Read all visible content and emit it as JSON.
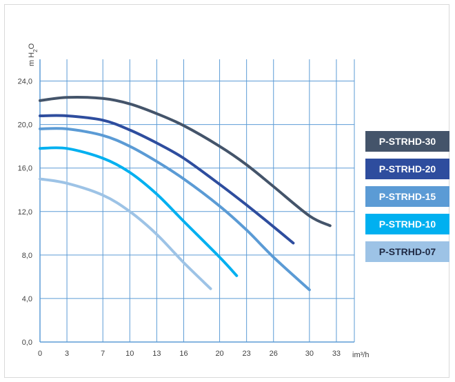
{
  "chart_data": {
    "type": "line",
    "ylabel": {
      "main": "m H",
      "sub": "2",
      "end": "O"
    },
    "xlabel": "im³/h",
    "x_ticks": [
      0,
      3,
      7,
      10,
      13,
      16,
      20,
      23,
      26,
      30,
      33
    ],
    "x_tick_labels": [
      "0",
      "3",
      "7",
      "10",
      "13",
      "16",
      "20",
      "23",
      "26",
      "30",
      "33"
    ],
    "y_ticks": [
      0,
      4,
      8,
      12,
      16,
      20,
      24
    ],
    "y_tick_labels": [
      "0,0",
      "4,0",
      "8,0",
      "12,0",
      "16,0",
      "20,0",
      "24,0"
    ],
    "xlim": [
      0,
      35
    ],
    "ylim": [
      0,
      26
    ],
    "grid": true,
    "legend_position": "right",
    "series": [
      {
        "name": "P-STRHD-30",
        "color": "#44546a",
        "text_color": "#ffffff",
        "x": [
          0,
          3,
          7,
          10,
          13,
          16,
          20,
          23,
          26,
          30,
          32.3
        ],
        "y": [
          22.2,
          22.5,
          22.4,
          21.9,
          21.0,
          19.9,
          18.0,
          16.3,
          14.3,
          11.6,
          10.7
        ]
      },
      {
        "name": "P-STRHD-20",
        "color": "#2e4d9e",
        "text_color": "#ffffff",
        "x": [
          0,
          3,
          7,
          10,
          13,
          16,
          20,
          23,
          26,
          28.2
        ],
        "y": [
          20.8,
          20.8,
          20.4,
          19.5,
          18.3,
          16.9,
          14.5,
          12.6,
          10.6,
          9.1
        ]
      },
      {
        "name": "P-STRHD-15",
        "color": "#5b9bd5",
        "text_color": "#ffffff",
        "x": [
          0,
          3,
          7,
          10,
          13,
          16,
          20,
          23,
          26,
          30
        ],
        "y": [
          19.6,
          19.6,
          19.0,
          18.0,
          16.6,
          15.0,
          12.5,
          10.3,
          7.8,
          4.8
        ]
      },
      {
        "name": "P-STRHD-10",
        "color": "#00b0f0",
        "text_color": "#ffffff",
        "x": [
          0,
          3,
          7,
          10,
          13,
          16,
          20,
          21.9
        ],
        "y": [
          17.8,
          17.8,
          16.9,
          15.6,
          13.6,
          11.1,
          7.8,
          6.1
        ]
      },
      {
        "name": "P-STRHD-07",
        "color": "#9dc3e6",
        "text_color": "#1f2a44",
        "x": [
          0,
          3,
          7,
          10,
          13,
          16,
          19
        ],
        "y": [
          15.0,
          14.6,
          13.5,
          12.0,
          9.9,
          7.3,
          4.9
        ]
      }
    ]
  }
}
